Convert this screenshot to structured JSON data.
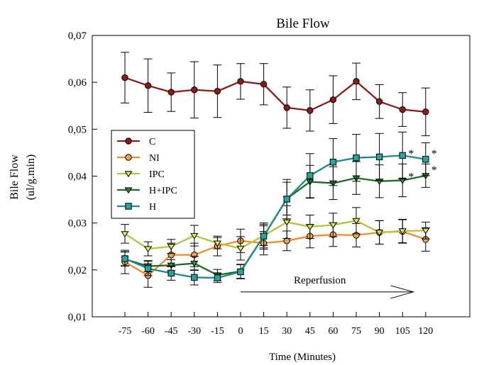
{
  "chart_data": {
    "type": "line",
    "title": "Bile Flow",
    "xlabel": "Time (Minutes)",
    "ylabel_line1": "Bile Flow",
    "ylabel_line2": "(ul/g.min)",
    "x": [
      -75,
      -60,
      -45,
      -30,
      -15,
      0,
      15,
      30,
      45,
      60,
      75,
      90,
      105,
      120
    ],
    "x_tick_labels": [
      "-75",
      "-60",
      "-45",
      "-30",
      "-15",
      "0",
      "15",
      "30",
      "45",
      "60",
      "75",
      "90",
      "105",
      "120"
    ],
    "ylim": [
      0.01,
      0.07
    ],
    "y_ticks": [
      0.01,
      0.02,
      0.03,
      0.04,
      0.05,
      0.06,
      0.07
    ],
    "y_tick_labels": [
      "0,01",
      "0,02",
      "0,03",
      "0,04",
      "0,05",
      "0,06",
      "0,07"
    ],
    "grid": false,
    "legend_position": "middle-left",
    "series": [
      {
        "name": "C",
        "marker": "circle",
        "color": "#8B1A1A",
        "fill": "#8B1A1A",
        "values": [
          0.061,
          0.0593,
          0.0579,
          0.0584,
          0.0581,
          0.0602,
          0.0596,
          0.0546,
          0.054,
          0.0563,
          0.0602,
          0.0559,
          0.0542,
          0.0537
        ],
        "errors": [
          0.0054,
          0.0057,
          0.0041,
          0.006,
          0.0056,
          0.0038,
          0.0044,
          0.0044,
          0.0044,
          0.0051,
          0.0039,
          0.0036,
          0.0036,
          0.0051
        ]
      },
      {
        "name": "NI",
        "marker": "circle",
        "color": "#F08A2C",
        "fill": "#F4A04F",
        "values": [
          0.0217,
          0.0188,
          0.0232,
          0.0232,
          0.0251,
          0.0262,
          0.0257,
          0.0262,
          0.0272,
          0.0275,
          0.0274,
          0.028,
          0.0282,
          0.0265
        ],
        "errors": [
          0.0025,
          0.0025,
          0.0025,
          0.0025,
          0.0021,
          0.0025,
          0.0025,
          0.0021,
          0.0025,
          0.0025,
          0.0025,
          0.0025,
          0.0025,
          0.0025
        ]
      },
      {
        "name": "IPC",
        "marker": "triangle-down",
        "color": "#B8C040",
        "fill": "#E0E45E",
        "values": [
          0.0277,
          0.0245,
          0.025,
          0.0273,
          0.0257,
          0.0246,
          0.0273,
          0.0302,
          0.0292,
          0.0296,
          0.0305,
          0.028,
          0.0283,
          0.0284
        ],
        "errors": [
          0.002,
          0.0015,
          0.0015,
          0.0022,
          0.0012,
          0.0025,
          0.0021,
          0.0035,
          0.0025,
          0.0025,
          0.0028,
          0.0025,
          0.0025,
          0.0018
        ]
      },
      {
        "name": "H+IPC",
        "marker": "triangle-down",
        "color": "#1E6B22",
        "fill": "#2E8B35",
        "values": [
          0.0223,
          0.0208,
          0.021,
          0.0214,
          0.0189,
          0.0197,
          0.0272,
          0.0352,
          0.0388,
          0.0385,
          0.0396,
          0.0389,
          0.0391,
          0.0401
        ],
        "errors": [
          0.0015,
          0.0012,
          0.0012,
          0.0015,
          0.0012,
          0.0015,
          0.0025,
          0.0035,
          0.0035,
          0.0035,
          0.0035,
          0.0035,
          0.0035,
          0.0025
        ]
      },
      {
        "name": "H",
        "marker": "square",
        "color": "#1E8A8A",
        "fill": "#2AA39E",
        "values": [
          0.0224,
          0.0203,
          0.0193,
          0.0184,
          0.0183,
          0.0196,
          0.0272,
          0.0351,
          0.0401,
          0.043,
          0.0439,
          0.0441,
          0.0444,
          0.0436
        ],
        "errors": [
          0.0015,
          0.0015,
          0.0015,
          0.0016,
          0.001,
          0.0015,
          0.0028,
          0.0042,
          0.0047,
          0.005,
          0.005,
          0.005,
          0.005,
          0.0035
        ]
      }
    ],
    "annotations": [
      {
        "text": "*",
        "x": 105,
        "y": 0.0446
      },
      {
        "text": "*",
        "x": 120,
        "y": 0.0446
      },
      {
        "text": "*",
        "x": 105,
        "y": 0.0397
      },
      {
        "text": "*",
        "x": 120,
        "y": 0.0411
      }
    ],
    "reperfusion": {
      "label": "Reperfusion",
      "x_start": 0,
      "x_end": 112,
      "y": 0.0153
    }
  }
}
